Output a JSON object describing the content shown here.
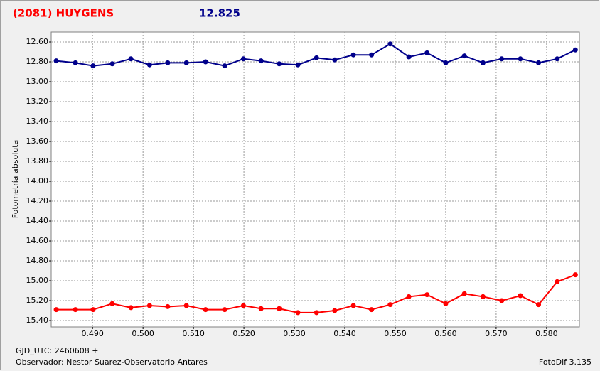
{
  "chart_data": {
    "type": "line",
    "title": "(2081) HUYGENS",
    "subtitle": "12.825",
    "y_label": "Fotometría absoluta",
    "footer_left": "GJD_UTC: 2460608 +",
    "footer_observer": "Observador: Nestor Suarez-Observatorio Antares",
    "footer_right": "FotoDif 3.135",
    "title_color": "#ff0000",
    "subtitle_color": "#00008b",
    "y_inverted": true,
    "grid": true,
    "x": [
      0.4828,
      0.4866,
      0.4901,
      0.4939,
      0.4976,
      0.5013,
      0.5049,
      0.5086,
      0.5124,
      0.5162,
      0.5199,
      0.5234,
      0.527,
      0.5307,
      0.5344,
      0.538,
      0.5417,
      0.5453,
      0.549,
      0.5527,
      0.5563,
      0.56,
      0.5637,
      0.5674,
      0.5711,
      0.5748,
      0.5784,
      0.5821,
      0.5857
    ],
    "series": [
      {
        "color": "#00008b",
        "values": [
          12.79,
          12.81,
          12.84,
          12.82,
          12.77,
          12.83,
          12.81,
          12.81,
          12.8,
          12.84,
          12.77,
          12.79,
          12.82,
          12.83,
          12.76,
          12.78,
          12.73,
          12.73,
          12.62,
          12.75,
          12.71,
          12.81,
          12.74,
          12.81,
          12.77,
          12.77,
          12.81,
          12.77,
          12.68
        ]
      },
      {
        "color": "#ff0000",
        "values": [
          15.29,
          15.29,
          15.29,
          15.23,
          15.27,
          15.25,
          15.26,
          15.25,
          15.29,
          15.29,
          15.25,
          15.28,
          15.28,
          15.32,
          15.32,
          15.3,
          15.25,
          15.29,
          15.24,
          15.16,
          15.14,
          15.23,
          15.13,
          15.16,
          15.2,
          15.15,
          15.24,
          15.01,
          14.94
        ]
      }
    ],
    "xlim": [
      0.4818,
      0.5865
    ],
    "ylim": [
      12.5,
      15.464
    ],
    "xticks": [
      {
        "value": 0.49,
        "label": "0.490"
      },
      {
        "value": 0.5,
        "label": "0.500"
      },
      {
        "value": 0.51,
        "label": "0.510"
      },
      {
        "value": 0.52,
        "label": "0.520"
      },
      {
        "value": 0.53,
        "label": "0.530"
      },
      {
        "value": 0.54,
        "label": "0.540"
      },
      {
        "value": 0.55,
        "label": "0.550"
      },
      {
        "value": 0.56,
        "label": "0.560"
      },
      {
        "value": 0.57,
        "label": "0.570"
      },
      {
        "value": 0.58,
        "label": "0.580"
      }
    ],
    "yticks": [
      {
        "value": 12.6,
        "label": "12.60"
      },
      {
        "value": 12.8,
        "label": "12.80"
      },
      {
        "value": 13.0,
        "label": "13.00"
      },
      {
        "value": 13.2,
        "label": "13.20"
      },
      {
        "value": 13.4,
        "label": "13.40"
      },
      {
        "value": 13.6,
        "label": "13.60"
      },
      {
        "value": 13.8,
        "label": "13.80"
      },
      {
        "value": 14.0,
        "label": "14.00"
      },
      {
        "value": 14.2,
        "label": "14.20"
      },
      {
        "value": 14.4,
        "label": "14.40"
      },
      {
        "value": 14.6,
        "label": "14.60"
      },
      {
        "value": 14.8,
        "label": "14.80"
      },
      {
        "value": 15.0,
        "label": "15.00"
      },
      {
        "value": 15.2,
        "label": "15.20"
      },
      {
        "value": 15.4,
        "label": "15.40"
      }
    ]
  }
}
